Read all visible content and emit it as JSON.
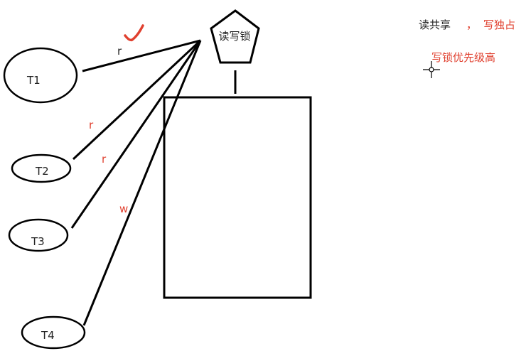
{
  "lock": {
    "label": "读写锁"
  },
  "threads": [
    {
      "id": "T1",
      "access": "r"
    },
    {
      "id": "T2",
      "access": "r"
    },
    {
      "id": "T3",
      "access": "r"
    },
    {
      "id": "T4",
      "access": "w"
    }
  ],
  "notes": {
    "read_shared": "读共享",
    "comma": "，",
    "write_exclusive": "写独占",
    "write_priority": "写锁优先级高"
  },
  "colors": {
    "ink": "#000000",
    "accent": "#e0402f"
  },
  "icons": {
    "checkmark": "checkmark-icon",
    "cursor": "crosshair-cursor-icon"
  }
}
